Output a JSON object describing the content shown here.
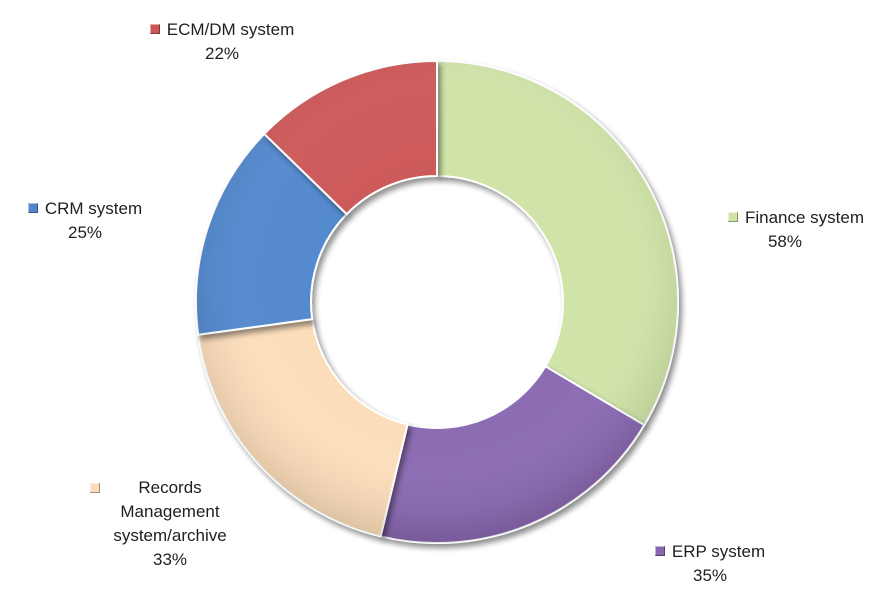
{
  "chart_data": {
    "type": "pie",
    "variant": "doughnut",
    "title": "",
    "legend": "none",
    "slices": [
      {
        "label": "Finance system",
        "pct_label": "58%",
        "value": 58,
        "color": "#cfe3a6"
      },
      {
        "label": "ERP system",
        "pct_label": "35%",
        "value": 35,
        "color": "#8866b0"
      },
      {
        "label": "Records Management system/archive",
        "pct_label": "33%",
        "value": 33,
        "color": "#fbdcb8"
      },
      {
        "label": "CRM system",
        "pct_label": "25%",
        "value": 25,
        "color": "#4f86cc"
      },
      {
        "label": "ECM/DM system",
        "pct_label": "22%",
        "value": 22,
        "color": "#cc5555"
      }
    ]
  }
}
